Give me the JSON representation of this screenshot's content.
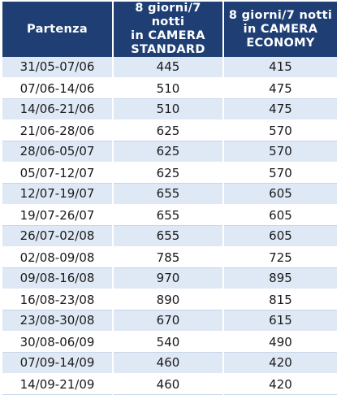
{
  "table": {
    "headers": {
      "departure": "Partenza",
      "standard": [
        "8 giorni/7 notti",
        "in CAMERA",
        "STANDARD"
      ],
      "economy": [
        "8 giorni/7 notti",
        "in CAMERA",
        "ECONOMY"
      ]
    },
    "rows": [
      {
        "date": "31/05-07/06",
        "standard": "445",
        "economy": "415"
      },
      {
        "date": "07/06-14/06",
        "standard": "510",
        "economy": "475"
      },
      {
        "date": "14/06-21/06",
        "standard": "510",
        "economy": "475"
      },
      {
        "date": "21/06-28/06",
        "standard": "625",
        "economy": "570"
      },
      {
        "date": "28/06-05/07",
        "standard": "625",
        "economy": "570"
      },
      {
        "date": "05/07-12/07",
        "standard": "625",
        "economy": "570"
      },
      {
        "date": "12/07-19/07",
        "standard": "655",
        "economy": "605"
      },
      {
        "date": "19/07-26/07",
        "standard": "655",
        "economy": "605"
      },
      {
        "date": "26/07-02/08",
        "standard": "655",
        "economy": "605"
      },
      {
        "date": "02/08-09/08",
        "standard": "785",
        "economy": "725"
      },
      {
        "date": "09/08-16/08",
        "standard": "970",
        "economy": "895"
      },
      {
        "date": "16/08-23/08",
        "standard": "890",
        "economy": "815"
      },
      {
        "date": "23/08-30/08",
        "standard": "670",
        "economy": "615"
      },
      {
        "date": "30/08-06/09",
        "standard": "540",
        "economy": "490"
      },
      {
        "date": "07/09-14/09",
        "standard": "460",
        "economy": "420"
      },
      {
        "date": "14/09-21/09",
        "standard": "460",
        "economy": "420"
      }
    ]
  },
  "colors": {
    "header_bg": "#1f3f74",
    "header_text": "#ffffff",
    "stripe_bg": "#dfe9f5",
    "row_bg": "#ffffff"
  }
}
